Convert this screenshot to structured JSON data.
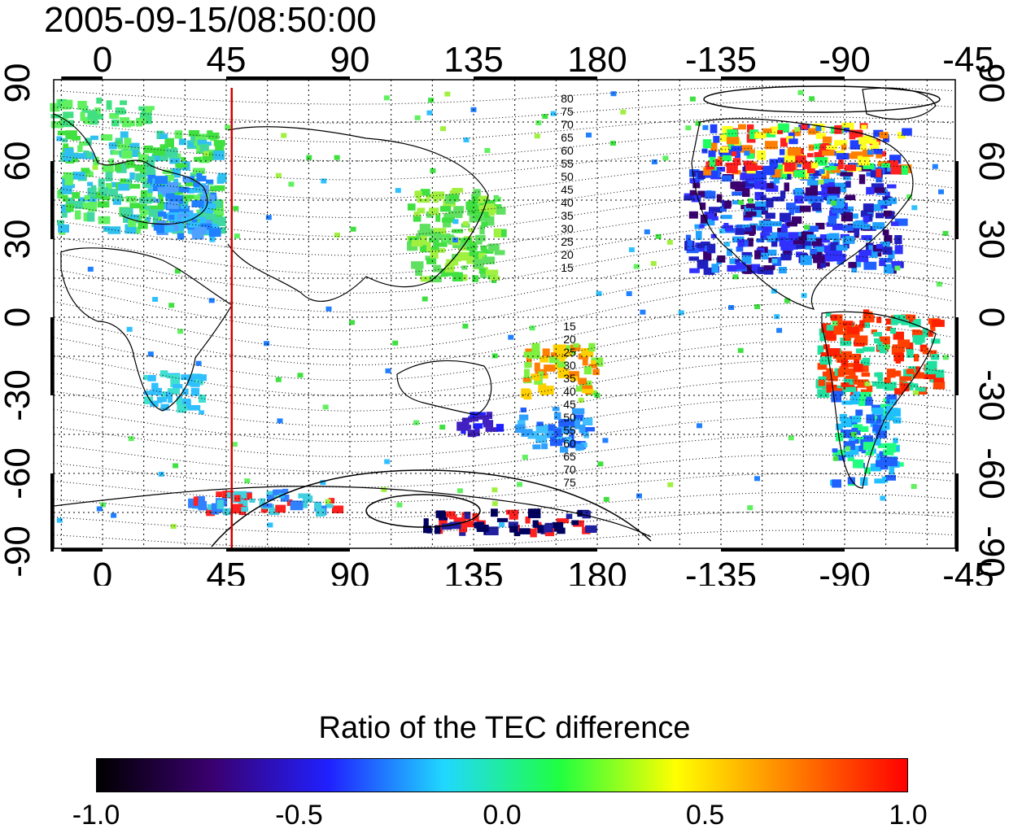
{
  "timestamp": "2005-09-15/08:50:00",
  "map": {
    "top_lon_labels": [
      "0",
      "45",
      "90",
      "135",
      "180",
      "-135",
      "-90",
      "-45"
    ],
    "bottom_lon_labels": [
      "0",
      "45",
      "90",
      "135",
      "180",
      "-135",
      "-90",
      "-45"
    ],
    "left_lat_labels": [
      "90",
      "60",
      "30",
      "0",
      "-30",
      "-60",
      "-90"
    ],
    "right_lat_labels": [
      "90",
      "60",
      "30",
      "0",
      "-30",
      "-60",
      "-90"
    ],
    "contour_labels_north": [
      "80",
      "75",
      "70",
      "65",
      "60",
      "55",
      "50",
      "45",
      "40",
      "35",
      "30",
      "25",
      "20",
      "15"
    ],
    "contour_labels_south": [
      "15",
      "20",
      "25",
      "30",
      "35",
      "40",
      "45",
      "50",
      "55",
      "60",
      "65",
      "70",
      "75"
    ],
    "meridian_marker_lon": 47,
    "meridian_marker_color": "#d00000"
  },
  "colorbar": {
    "title": "Ratio of the TEC difference",
    "labels": [
      "-1.0",
      "-0.5",
      "0.0",
      "0.5",
      "1.0"
    ],
    "range": [
      -1.0,
      1.0
    ],
    "colors": [
      "#000000",
      "#3a0070",
      "#2020ff",
      "#20d8ff",
      "#20ff40",
      "#ffff00",
      "#ff8000",
      "#ff0000"
    ]
  }
}
